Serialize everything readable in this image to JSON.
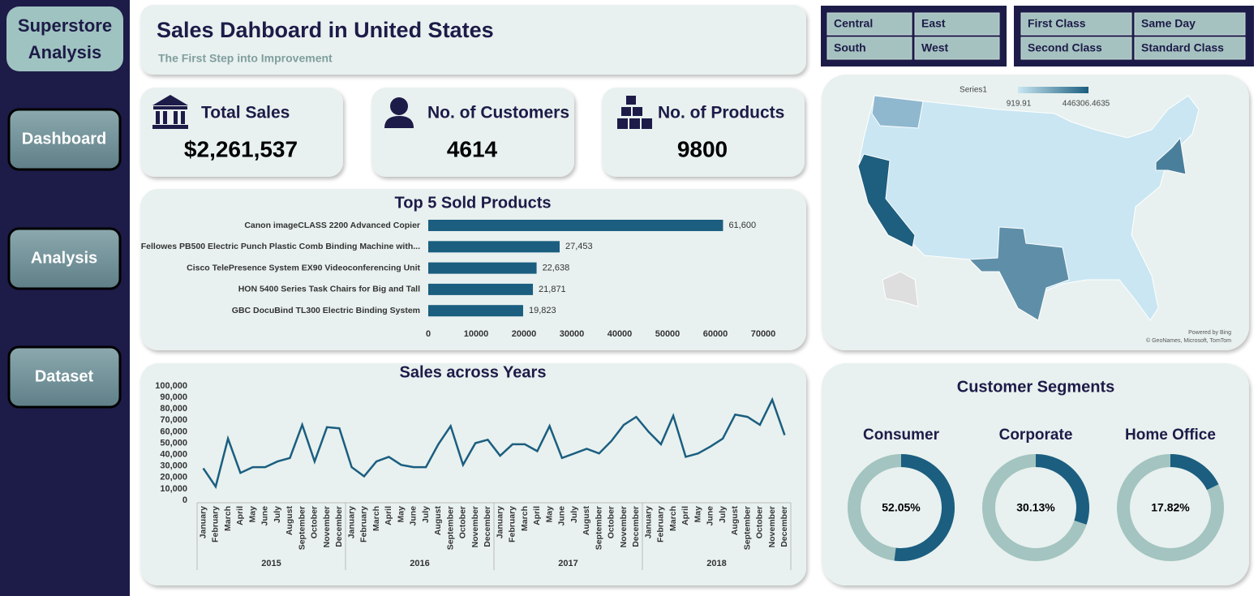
{
  "sidebar": {
    "brand": "Superstore Analysis",
    "nav": [
      "Dashboard",
      "Analysis",
      "Dataset"
    ]
  },
  "header": {
    "title": "Sales Dahboard in United States",
    "subtitle": "The First Step into Improvement"
  },
  "slicers": [
    [
      "Central",
      "East",
      "South",
      "West"
    ],
    [
      "First Class",
      "Same Day",
      "Second Class",
      "Standard Class"
    ]
  ],
  "kpis": [
    {
      "label": "Total Sales",
      "value": "$2,261,537"
    },
    {
      "label": "No. of Customers",
      "value": "4614"
    },
    {
      "label": "No. of Products",
      "value": "9800"
    }
  ],
  "chart_data": [
    {
      "type": "hbar",
      "title": "Top 5 Sold Products",
      "color": "#1b5e80",
      "categories": [
        "Canon imageCLASS 2200 Advanced Copier",
        "Fellowes PB500 Electric Punch Plastic Comb Binding Machine with...",
        "Cisco TelePresence System EX90 Videoconferencing Unit",
        "HON 5400 Series Task Chairs for Big and Tall",
        "GBC DocuBind TL300 Electric Binding System"
      ],
      "values": [
        61600,
        27453,
        22638,
        21871,
        19823
      ],
      "value_labels": [
        "61,600",
        "27,453",
        "22,638",
        "21,871",
        "19,823"
      ],
      "xlim": [
        0,
        70000
      ],
      "xticks": [
        0,
        10000,
        20000,
        30000,
        40000,
        50000,
        60000,
        70000
      ]
    },
    {
      "type": "line",
      "title": "Sales across Years",
      "color": "#1b5e80",
      "categories": [
        "January",
        "February",
        "March",
        "April",
        "May",
        "June",
        "July",
        "August",
        "September",
        "October",
        "November",
        "December",
        "January",
        "February",
        "March",
        "April",
        "May",
        "June",
        "July",
        "August",
        "September",
        "October",
        "November",
        "December",
        "January",
        "February",
        "March",
        "April",
        "May",
        "June",
        "July",
        "August",
        "September",
        "October",
        "November",
        "December",
        "January",
        "February",
        "March",
        "April",
        "May",
        "June",
        "July",
        "August",
        "September",
        "October",
        "November",
        "December"
      ],
      "years": [
        "2015",
        "2016",
        "2017",
        "2018"
      ],
      "values": [
        28000,
        12000,
        54000,
        24000,
        29000,
        29000,
        34000,
        37000,
        66000,
        34000,
        64000,
        63000,
        29000,
        21000,
        34000,
        38000,
        31000,
        29000,
        29000,
        49000,
        65000,
        31000,
        50000,
        53000,
        39000,
        49000,
        49000,
        43000,
        65000,
        37000,
        41000,
        45000,
        41000,
        52000,
        66000,
        73000,
        60000,
        49000,
        74000,
        38000,
        41000,
        47000,
        54000,
        75000,
        73000,
        66000,
        88000,
        57000
      ],
      "ylim": [
        0,
        100000
      ],
      "yticks": [
        0,
        {
          "value": 10000,
          "label": "10,000"
        },
        {
          "value": 20000,
          "label": "20,000"
        },
        {
          "value": 30000,
          "label": "30,000"
        },
        {
          "value": 40000,
          "label": "40,000"
        },
        {
          "value": 50000,
          "label": "50,000"
        },
        {
          "value": 60000,
          "label": "60,000"
        },
        {
          "value": 70000,
          "label": "70,000"
        },
        {
          "value": 80000,
          "label": "80,000"
        },
        {
          "value": 90000,
          "label": "90,000"
        },
        {
          "value": 100000,
          "label": "100,000"
        }
      ]
    },
    {
      "type": "map",
      "legend_title": "Series1",
      "legend_min": 919.91,
      "legend_max": 446306.4635,
      "colors": [
        "#c9e6f2",
        "#1b5e80"
      ],
      "credit_1": "Powered by Bing",
      "credit_2": "© GeoNames, Microsoft, TomTom"
    },
    {
      "type": "donut",
      "title": "Customer Segments",
      "colors": [
        "#1b5e80",
        "#a3c4c0"
      ],
      "categories": [
        "Consumer",
        "Corporate",
        "Home Office"
      ],
      "values": [
        52.05,
        30.13,
        17.82
      ],
      "value_labels": [
        "52.05%",
        "30.13%",
        "17.82%"
      ]
    }
  ]
}
